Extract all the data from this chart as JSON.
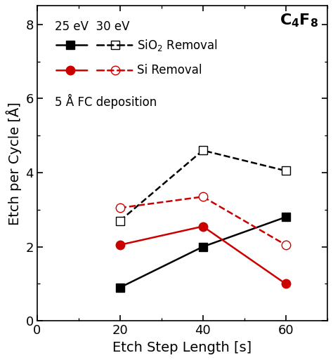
{
  "title": "$\\mathbf{C_4F_8}$",
  "xlabel": "Etch Step Length [s]",
  "ylabel": "Etch per Cycle [Å]",
  "xlim": [
    0,
    70
  ],
  "ylim": [
    0,
    8.5
  ],
  "xticks": [
    0,
    20,
    40,
    60
  ],
  "yticks": [
    0,
    2,
    4,
    6,
    8
  ],
  "x_values": [
    20,
    40,
    60
  ],
  "sio2_25eV": [
    0.9,
    2.0,
    2.8
  ],
  "sio2_30eV": [
    2.7,
    4.6,
    4.05
  ],
  "si_25eV": [
    2.05,
    2.55,
    1.0
  ],
  "si_30eV": [
    3.05,
    3.35,
    2.05
  ],
  "color_black": "#000000",
  "color_red": "#cc0000",
  "annotation_fc": "5 Å FC deposition",
  "legend_sio2": "SiO$_2$ Removal",
  "legend_si": "Si Removal",
  "bg_color": "#ffffff",
  "linewidth": 1.8,
  "markersize": 9
}
